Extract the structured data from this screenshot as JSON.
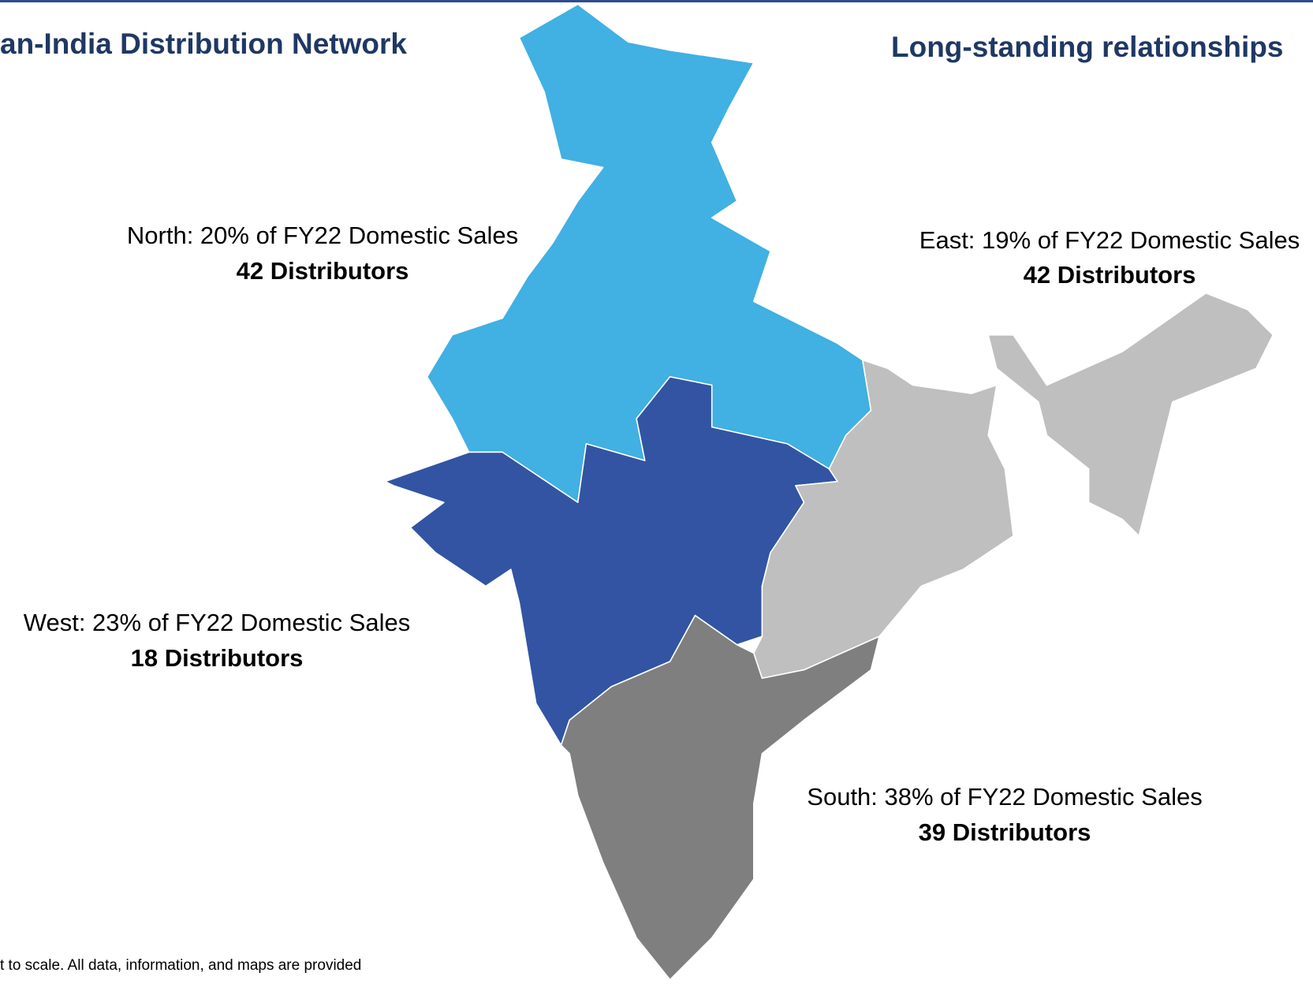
{
  "header": {
    "left_title": "an-India Distribution Network",
    "right_title": "Long-standing relationships"
  },
  "regions": [
    {
      "label": "North: 20% of FY22 Domestic Sales",
      "distributors": "42 Distributors"
    },
    {
      "label": "East: 19% of FY22 Domestic Sales",
      "distributors": "42 Distributors"
    },
    {
      "label": "West: 23% of FY22 Domestic Sales",
      "distributors": "18 Distributors"
    },
    {
      "label": "South: 38% of FY22 Domestic Sales",
      "distributors": "39 Distributors"
    }
  ],
  "footnote": "t to scale. All data, information, and maps are provided"
}
